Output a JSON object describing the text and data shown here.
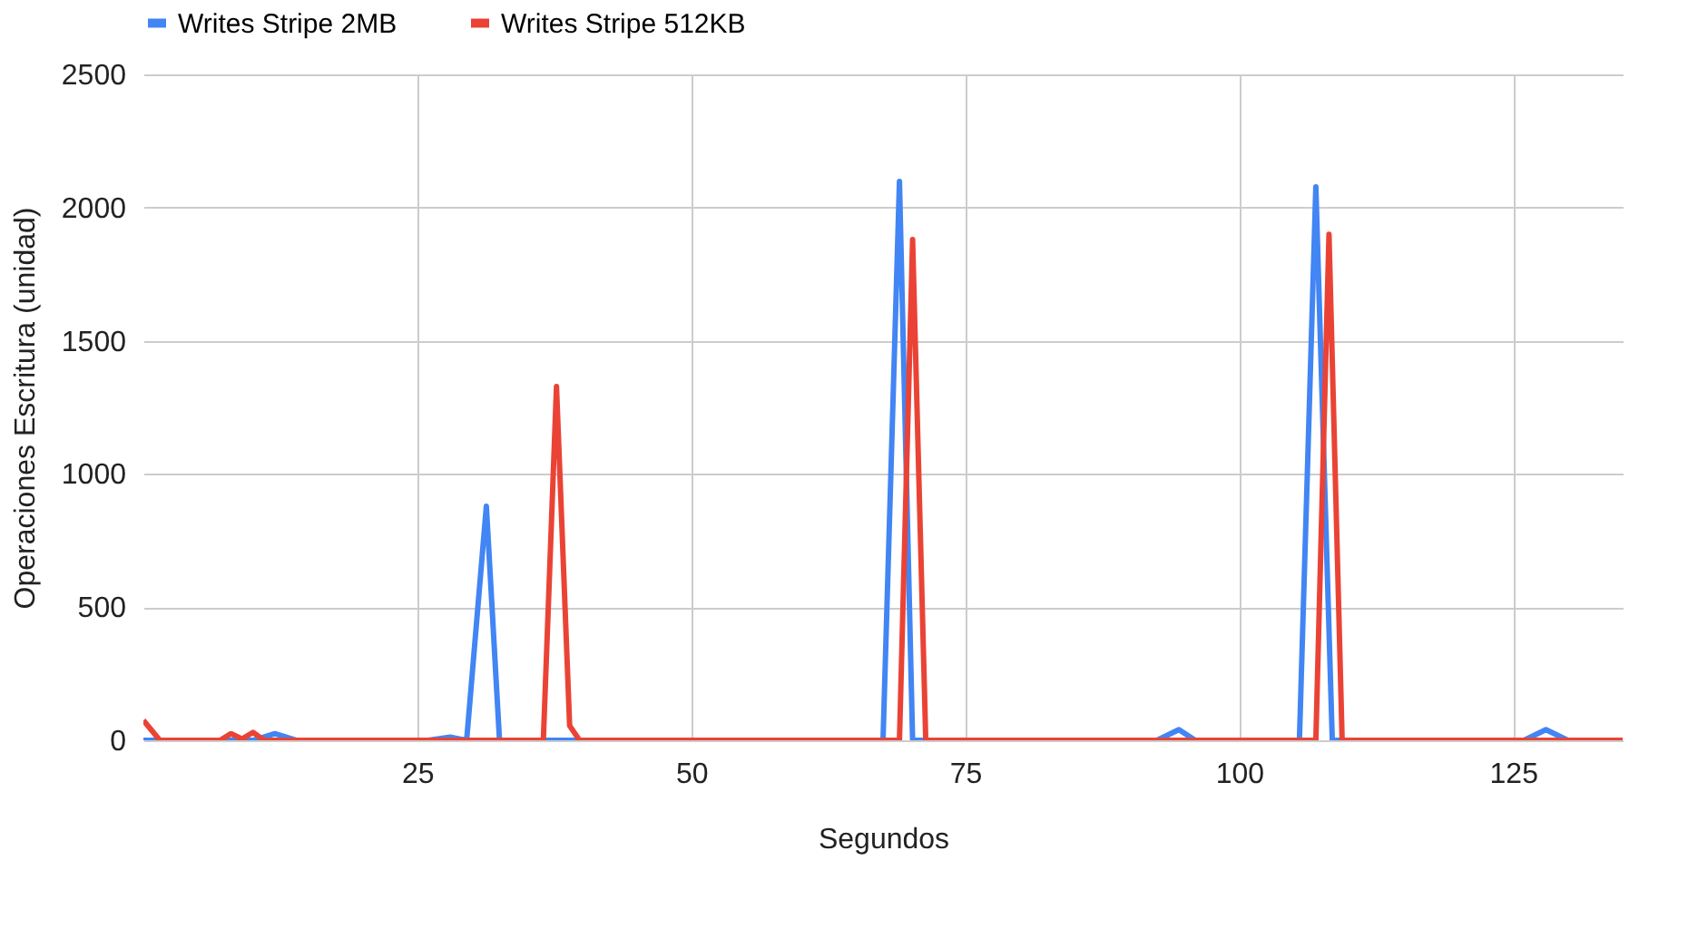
{
  "chart_data": {
    "type": "line",
    "xlabel": "Segundos",
    "ylabel": "Operaciones Escritura (unidad)",
    "xlim": [
      0,
      135
    ],
    "xticks": [
      25,
      50,
      75,
      100,
      125
    ],
    "ylim": [
      0,
      2500
    ],
    "yticks": [
      0,
      500,
      1000,
      1500,
      2000,
      2500
    ],
    "grid": true,
    "legend": "top",
    "marker": "none",
    "line_style": "solid",
    "series": [
      {
        "name": "Writes Stripe 2MB",
        "color": "#4285f4",
        "x": [
          0,
          10,
          12,
          14,
          26,
          28,
          29.5,
          31.3,
          32.5,
          67.5,
          69,
          70.2,
          92.5,
          94.5,
          96,
          105.5,
          107,
          108.5,
          126,
          128,
          130,
          135
        ],
        "values": [
          0,
          0,
          25,
          0,
          0,
          12,
          0,
          879,
          0,
          0,
          2098,
          0,
          0,
          40,
          0,
          0,
          2078,
          0,
          0,
          40,
          0,
          0
        ]
      },
      {
        "name": "Writes Stripe 512KB",
        "color": "#ea4335",
        "x": [
          0,
          1.5,
          7,
          8,
          9,
          10,
          11,
          36.5,
          37.7,
          38.9,
          39.8,
          69,
          70.2,
          71.4,
          107,
          108.2,
          109.4,
          135
        ],
        "values": [
          75,
          0,
          0,
          25,
          5,
          30,
          0,
          0,
          1328,
          55,
          0,
          0,
          1880,
          0,
          0,
          1900,
          0,
          0
        ]
      }
    ]
  }
}
